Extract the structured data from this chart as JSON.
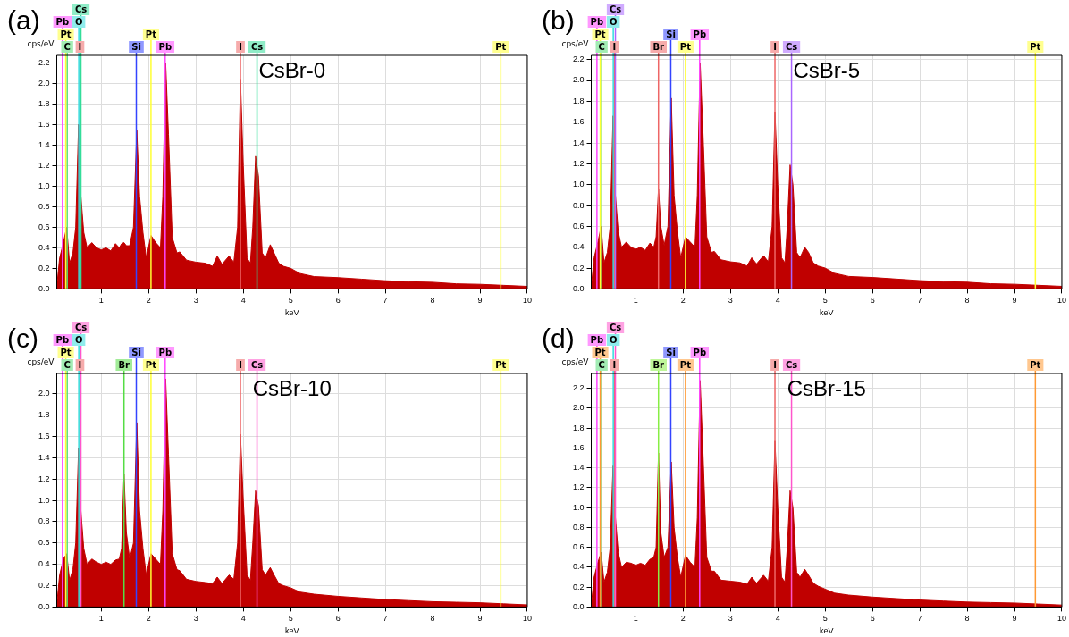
{
  "chart_data": [
    {
      "type": "area",
      "title": "CsBr-0",
      "xlabel": "keV",
      "ylabel": "cps/eV",
      "annotations": [
        "(a)"
      ],
      "grid": true,
      "legend": false,
      "marker": "none",
      "x": [
        0.06,
        0.12,
        0.2,
        0.27,
        0.33,
        0.4,
        0.46,
        0.52,
        0.57,
        0.63,
        0.7,
        0.8,
        0.9,
        1.0,
        1.1,
        1.2,
        1.3,
        1.38,
        1.43,
        1.48,
        1.53,
        1.6,
        1.68,
        1.75,
        1.81,
        1.88,
        1.95,
        2.05,
        2.15,
        2.25,
        2.3,
        2.36,
        2.42,
        2.5,
        2.6,
        2.66,
        2.8,
        3.0,
        3.2,
        3.35,
        3.45,
        3.55,
        3.7,
        3.8,
        3.88,
        3.94,
        4.0,
        4.08,
        4.15,
        4.2,
        4.26,
        4.32,
        4.4,
        4.47,
        4.57,
        4.65,
        4.75,
        4.85,
        5.0,
        5.2,
        5.5,
        6.0,
        6.5,
        7.0,
        7.5,
        8.0,
        8.5,
        9.0,
        9.5,
        10.0
      ],
      "series": [
        {
          "color": "#c00000",
          "values": [
            0.02,
            0.3,
            0.45,
            0.6,
            0.25,
            0.35,
            0.6,
            1.6,
            0.9,
            0.55,
            0.4,
            0.45,
            0.4,
            0.38,
            0.4,
            0.37,
            0.44,
            0.4,
            0.44,
            0.45,
            0.42,
            0.42,
            0.6,
            1.54,
            0.9,
            0.55,
            0.3,
            0.52,
            0.45,
            0.4,
            0.9,
            2.2,
            1.5,
            0.5,
            0.35,
            0.36,
            0.28,
            0.26,
            0.25,
            0.22,
            0.32,
            0.24,
            0.32,
            0.26,
            0.6,
            2.04,
            1.2,
            0.3,
            0.25,
            0.6,
            1.29,
            1.1,
            0.35,
            0.3,
            0.43,
            0.35,
            0.25,
            0.22,
            0.2,
            0.15,
            0.12,
            0.11,
            0.095,
            0.08,
            0.07,
            0.065,
            0.05,
            0.045,
            0.035,
            0.025
          ]
        }
      ],
      "xlim": [
        0.06,
        10
      ],
      "xticks": [
        1,
        2,
        3,
        4,
        5,
        6,
        7,
        8,
        9,
        10
      ],
      "ylim": [
        0,
        2.27
      ],
      "yticks": [
        {
          "value": 0,
          "label": "0.0"
        },
        0.2,
        0.4,
        0.6,
        0.8,
        {
          "value": 1,
          "label": "1.0"
        },
        1.2,
        1.4,
        1.6,
        1.8,
        {
          "value": 2,
          "label": "2.0"
        },
        2.2
      ],
      "ref_lines": [
        {
          "axis": "x",
          "value": 0.28,
          "label": "C",
          "color": "#55dd77"
        },
        {
          "axis": "x",
          "value": 0.25,
          "label": "Pt",
          "color": "#ffff33"
        },
        {
          "axis": "x",
          "value": 0.55,
          "label": "I",
          "color": "#ee6666"
        },
        {
          "axis": "x",
          "value": 0.525,
          "label": "O",
          "color": "#33dddd"
        },
        {
          "axis": "x",
          "value": 0.57,
          "label": "Cs",
          "color": "#33dd99"
        },
        {
          "axis": "x",
          "value": 1.74,
          "label": "Si",
          "color": "#3344ff"
        },
        {
          "axis": "x",
          "value": 2.05,
          "label": "Pt",
          "color": "#ffff33"
        },
        {
          "axis": "x",
          "value": 2.35,
          "label": "Pb",
          "color": "#ff44ff"
        },
        {
          "axis": "x",
          "value": 3.94,
          "label": "I",
          "color": "#ee6666"
        },
        {
          "axis": "x",
          "value": 4.29,
          "label": "Cs",
          "color": "#33dd99"
        },
        {
          "axis": "x",
          "value": 9.44,
          "label": "Pt",
          "color": "#ffff33"
        },
        {
          "axis": "x",
          "value": 0.18,
          "label": "Pb",
          "color": "#ff44ff"
        }
      ]
    },
    {
      "type": "area",
      "title": "CsBr-5",
      "xlabel": "keV",
      "ylabel": "cps/eV",
      "annotations": [
        "(b)"
      ],
      "grid": true,
      "legend": false,
      "marker": "none",
      "x": [
        0.06,
        0.12,
        0.2,
        0.27,
        0.33,
        0.4,
        0.46,
        0.52,
        0.57,
        0.63,
        0.7,
        0.8,
        0.9,
        1.0,
        1.1,
        1.2,
        1.3,
        1.38,
        1.43,
        1.48,
        1.53,
        1.6,
        1.68,
        1.75,
        1.81,
        1.88,
        1.95,
        2.05,
        2.15,
        2.25,
        2.3,
        2.36,
        2.42,
        2.5,
        2.6,
        2.66,
        2.8,
        3.0,
        3.2,
        3.35,
        3.45,
        3.55,
        3.7,
        3.8,
        3.88,
        3.94,
        4.0,
        4.08,
        4.15,
        4.2,
        4.26,
        4.32,
        4.4,
        4.47,
        4.57,
        4.65,
        4.75,
        4.85,
        5.0,
        5.2,
        5.5,
        6.0,
        6.5,
        7.0,
        7.5,
        8.0,
        8.5,
        9.0,
        9.5,
        10.0
      ],
      "series": [
        {
          "color": "#c00000",
          "values": [
            0.02,
            0.3,
            0.45,
            0.6,
            0.25,
            0.35,
            0.6,
            1.66,
            0.9,
            0.55,
            0.4,
            0.45,
            0.4,
            0.38,
            0.4,
            0.37,
            0.44,
            0.4,
            0.5,
            0.96,
            0.6,
            0.42,
            0.6,
            1.83,
            0.9,
            0.55,
            0.3,
            0.5,
            0.45,
            0.4,
            0.9,
            2.17,
            1.5,
            0.5,
            0.35,
            0.36,
            0.28,
            0.26,
            0.25,
            0.22,
            0.3,
            0.24,
            0.32,
            0.26,
            0.6,
            1.7,
            1.0,
            0.3,
            0.25,
            0.6,
            1.19,
            1.0,
            0.35,
            0.3,
            0.4,
            0.35,
            0.25,
            0.22,
            0.2,
            0.15,
            0.12,
            0.11,
            0.095,
            0.08,
            0.07,
            0.065,
            0.05,
            0.045,
            0.035,
            0.025
          ]
        }
      ],
      "xlim": [
        0.06,
        10
      ],
      "xticks": [
        1,
        2,
        3,
        4,
        5,
        6,
        7,
        8,
        9,
        10
      ],
      "ylim": [
        0,
        2.24
      ],
      "yticks": [
        {
          "value": 0,
          "label": "0.0"
        },
        0.2,
        0.4,
        0.6,
        0.8,
        {
          "value": 1,
          "label": "1.0"
        },
        1.2,
        1.4,
        1.6,
        1.8,
        {
          "value": 2,
          "label": "2.0"
        },
        2.2
      ],
      "ref_lines": [
        {
          "axis": "x",
          "value": 0.28,
          "label": "C",
          "color": "#55dd77"
        },
        {
          "axis": "x",
          "value": 0.25,
          "label": "Pt",
          "color": "#ffff33"
        },
        {
          "axis": "x",
          "value": 0.55,
          "label": "I",
          "color": "#ee6666"
        },
        {
          "axis": "x",
          "value": 0.525,
          "label": "O",
          "color": "#33dddd"
        },
        {
          "axis": "x",
          "value": 0.57,
          "label": "Cs",
          "color": "#aa66ff"
        },
        {
          "axis": "x",
          "value": 1.48,
          "label": "Br",
          "color": "#ee6666"
        },
        {
          "axis": "x",
          "value": 1.74,
          "label": "Si",
          "color": "#3344ff"
        },
        {
          "axis": "x",
          "value": 2.05,
          "label": "Pt",
          "color": "#ffff33"
        },
        {
          "axis": "x",
          "value": 2.35,
          "label": "Pb",
          "color": "#ff44ff"
        },
        {
          "axis": "x",
          "value": 3.94,
          "label": "I",
          "color": "#ee6666"
        },
        {
          "axis": "x",
          "value": 4.29,
          "label": "Cs",
          "color": "#aa66ff"
        },
        {
          "axis": "x",
          "value": 9.44,
          "label": "Pt",
          "color": "#ffff33"
        },
        {
          "axis": "x",
          "value": 0.18,
          "label": "Pb",
          "color": "#ff44ff"
        }
      ]
    },
    {
      "type": "area",
      "title": "CsBr-10",
      "xlabel": "keV",
      "ylabel": "cps/eV",
      "annotations": [
        "(c)"
      ],
      "grid": true,
      "legend": false,
      "marker": "none",
      "x": [
        0.06,
        0.12,
        0.2,
        0.27,
        0.33,
        0.4,
        0.46,
        0.52,
        0.57,
        0.63,
        0.7,
        0.8,
        0.9,
        1.0,
        1.1,
        1.2,
        1.3,
        1.38,
        1.43,
        1.48,
        1.53,
        1.6,
        1.68,
        1.75,
        1.81,
        1.88,
        1.95,
        2.05,
        2.15,
        2.25,
        2.3,
        2.36,
        2.42,
        2.5,
        2.6,
        2.66,
        2.8,
        3.0,
        3.2,
        3.35,
        3.45,
        3.55,
        3.7,
        3.8,
        3.88,
        3.94,
        4.0,
        4.08,
        4.15,
        4.2,
        4.26,
        4.32,
        4.4,
        4.47,
        4.57,
        4.65,
        4.75,
        4.85,
        5.0,
        5.2,
        5.5,
        6.0,
        6.5,
        7.0,
        7.5,
        8.0,
        8.5,
        9.0,
        9.5,
        10.0
      ],
      "series": [
        {
          "color": "#c00000",
          "values": [
            0.02,
            0.3,
            0.45,
            0.5,
            0.25,
            0.35,
            0.6,
            1.49,
            0.9,
            0.55,
            0.4,
            0.45,
            0.42,
            0.4,
            0.42,
            0.4,
            0.44,
            0.45,
            0.55,
            1.25,
            0.7,
            0.45,
            0.6,
            1.73,
            0.9,
            0.55,
            0.3,
            0.5,
            0.45,
            0.4,
            0.9,
            2.14,
            1.43,
            0.5,
            0.35,
            0.34,
            0.26,
            0.24,
            0.23,
            0.22,
            0.28,
            0.22,
            0.3,
            0.26,
            0.6,
            1.62,
            1.0,
            0.3,
            0.25,
            0.6,
            1.09,
            0.95,
            0.35,
            0.3,
            0.37,
            0.3,
            0.22,
            0.2,
            0.18,
            0.14,
            0.12,
            0.1,
            0.085,
            0.07,
            0.06,
            0.05,
            0.045,
            0.04,
            0.03,
            0.02
          ]
        }
      ],
      "xlim": [
        0.06,
        10
      ],
      "xticks": [
        1,
        2,
        3,
        4,
        5,
        6,
        7,
        8,
        9,
        10
      ],
      "ylim": [
        0,
        2.19
      ],
      "yticks": [
        {
          "value": 0,
          "label": "0.0"
        },
        0.2,
        0.4,
        0.6,
        0.8,
        {
          "value": 1,
          "label": "1.0"
        },
        1.2,
        1.4,
        1.6,
        1.8,
        {
          "value": 2,
          "label": "2.0"
        }
      ],
      "ref_lines": [
        {
          "axis": "x",
          "value": 0.28,
          "label": "C",
          "color": "#55dd77"
        },
        {
          "axis": "x",
          "value": 0.25,
          "label": "Pt",
          "color": "#ffff33"
        },
        {
          "axis": "x",
          "value": 0.55,
          "label": "I",
          "color": "#ee6666"
        },
        {
          "axis": "x",
          "value": 0.525,
          "label": "O",
          "color": "#33dddd"
        },
        {
          "axis": "x",
          "value": 0.57,
          "label": "Cs",
          "color": "#ff55cc"
        },
        {
          "axis": "x",
          "value": 1.48,
          "label": "Br",
          "color": "#55dd44"
        },
        {
          "axis": "x",
          "value": 1.74,
          "label": "Si",
          "color": "#3344ff"
        },
        {
          "axis": "x",
          "value": 2.05,
          "label": "Pt",
          "color": "#ffff33"
        },
        {
          "axis": "x",
          "value": 2.35,
          "label": "Pb",
          "color": "#ff44ff"
        },
        {
          "axis": "x",
          "value": 3.94,
          "label": "I",
          "color": "#ee6666"
        },
        {
          "axis": "x",
          "value": 4.29,
          "label": "Cs",
          "color": "#ff55cc"
        },
        {
          "axis": "x",
          "value": 9.44,
          "label": "Pt",
          "color": "#ffff33"
        },
        {
          "axis": "x",
          "value": 0.18,
          "label": "Pb",
          "color": "#ff44ff"
        }
      ]
    },
    {
      "type": "area",
      "title": "CsBr-15",
      "xlabel": "keV",
      "ylabel": "cps/eV",
      "annotations": [
        "(d)"
      ],
      "grid": true,
      "legend": false,
      "marker": "none",
      "x": [
        0.06,
        0.12,
        0.2,
        0.27,
        0.33,
        0.4,
        0.46,
        0.52,
        0.57,
        0.63,
        0.7,
        0.8,
        0.9,
        1.0,
        1.1,
        1.2,
        1.3,
        1.38,
        1.43,
        1.48,
        1.53,
        1.6,
        1.68,
        1.75,
        1.81,
        1.88,
        1.95,
        2.05,
        2.15,
        2.25,
        2.3,
        2.36,
        2.42,
        2.5,
        2.6,
        2.66,
        2.8,
        3.0,
        3.2,
        3.35,
        3.45,
        3.55,
        3.7,
        3.8,
        3.88,
        3.94,
        4.0,
        4.08,
        4.15,
        4.2,
        4.26,
        4.32,
        4.4,
        4.47,
        4.57,
        4.65,
        4.75,
        4.85,
        5.0,
        5.2,
        5.5,
        6.0,
        6.5,
        7.0,
        7.5,
        8.0,
        8.5,
        9.0,
        9.5,
        10.0
      ],
      "series": [
        {
          "color": "#c00000",
          "values": [
            0.02,
            0.3,
            0.45,
            0.55,
            0.25,
            0.35,
            0.6,
            1.42,
            0.9,
            0.55,
            0.4,
            0.45,
            0.44,
            0.42,
            0.44,
            0.42,
            0.48,
            0.5,
            0.6,
            1.55,
            0.75,
            0.5,
            0.6,
            1.46,
            0.8,
            0.5,
            0.3,
            0.52,
            0.45,
            0.4,
            0.9,
            2.28,
            1.55,
            0.5,
            0.36,
            0.36,
            0.27,
            0.26,
            0.25,
            0.23,
            0.3,
            0.24,
            0.32,
            0.26,
            0.6,
            1.67,
            1.0,
            0.3,
            0.25,
            0.6,
            1.17,
            1.0,
            0.35,
            0.3,
            0.38,
            0.32,
            0.24,
            0.21,
            0.18,
            0.14,
            0.12,
            0.1,
            0.085,
            0.07,
            0.06,
            0.05,
            0.045,
            0.04,
            0.03,
            0.02
          ]
        }
      ],
      "xlim": [
        0.06,
        10
      ],
      "xticks": [
        1,
        2,
        3,
        4,
        5,
        6,
        7,
        8,
        9,
        10
      ],
      "ylim": [
        0,
        2.35
      ],
      "yticks": [
        {
          "value": 0,
          "label": "0.0"
        },
        0.2,
        0.4,
        0.6,
        0.8,
        {
          "value": 1,
          "label": "1.0"
        },
        1.2,
        1.4,
        1.6,
        1.8,
        {
          "value": 2,
          "label": "2.0"
        },
        2.2
      ],
      "ref_lines": [
        {
          "axis": "x",
          "value": 0.28,
          "label": "C",
          "color": "#55dd77"
        },
        {
          "axis": "x",
          "value": 0.25,
          "label": "Pt",
          "color": "#ff9933"
        },
        {
          "axis": "x",
          "value": 0.55,
          "label": "I",
          "color": "#ee6666"
        },
        {
          "axis": "x",
          "value": 0.525,
          "label": "O",
          "color": "#33dddd"
        },
        {
          "axis": "x",
          "value": 0.57,
          "label": "Cs",
          "color": "#ff55cc"
        },
        {
          "axis": "x",
          "value": 1.48,
          "label": "Br",
          "color": "#88ee44"
        },
        {
          "axis": "x",
          "value": 1.74,
          "label": "Si",
          "color": "#3344ff"
        },
        {
          "axis": "x",
          "value": 2.05,
          "label": "Pt",
          "color": "#ff9933"
        },
        {
          "axis": "x",
          "value": 2.35,
          "label": "Pb",
          "color": "#ff44ff"
        },
        {
          "axis": "x",
          "value": 3.94,
          "label": "I",
          "color": "#ee6666"
        },
        {
          "axis": "x",
          "value": 4.29,
          "label": "Cs",
          "color": "#ff55cc"
        },
        {
          "axis": "x",
          "value": 9.44,
          "label": "Pt",
          "color": "#ff9933"
        },
        {
          "axis": "x",
          "value": 0.18,
          "label": "Pb",
          "color": "#ff44ff"
        }
      ]
    }
  ]
}
